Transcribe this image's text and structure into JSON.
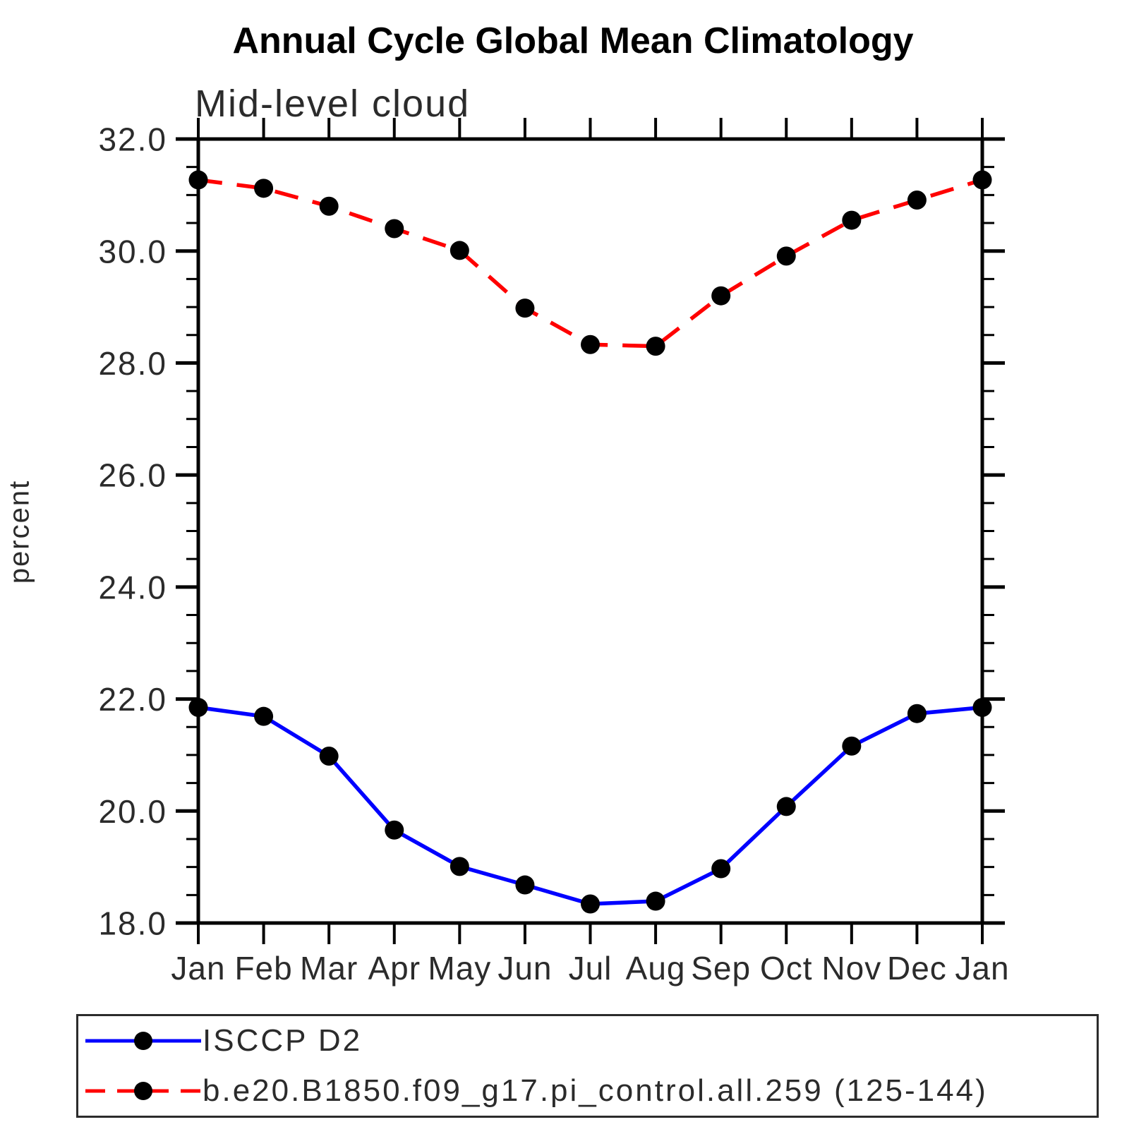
{
  "chart": {
    "title": "Annual Cycle Global Mean Climatology",
    "subtitle": "Mid-level cloud",
    "ylabel": "percent"
  },
  "chart_data": {
    "type": "line",
    "title": "Annual Cycle Global Mean Climatology",
    "subtitle": "Mid-level cloud",
    "xlabel": "",
    "ylabel": "percent",
    "categories": [
      "Jan",
      "Feb",
      "Mar",
      "Apr",
      "May",
      "Jun",
      "Jul",
      "Aug",
      "Sep",
      "Oct",
      "Nov",
      "Dec",
      "Jan"
    ],
    "ylim": [
      18.0,
      32.0
    ],
    "ytick_major_interval": 2.0,
    "ytick_minor_interval": 0.5,
    "ytick_labels": [
      "18.0",
      "20.0",
      "22.0",
      "24.0",
      "26.0",
      "28.0",
      "30.0",
      "32.0"
    ],
    "grid": false,
    "legend_position": "bottom",
    "series": [
      {
        "name": "ISCCP D2",
        "color": "#0000ff",
        "line_style": "solid",
        "marker": "filled-circle",
        "marker_color": "#000000",
        "values": [
          21.85,
          21.69,
          20.98,
          19.66,
          19.01,
          18.68,
          18.34,
          18.39,
          18.97,
          20.08,
          21.16,
          21.74,
          21.85
        ]
      },
      {
        "name": "b.e20.B1850.f09_g17.pi_control.all.259 (125-144)",
        "color": "#ff0000",
        "line_style": "dashed",
        "marker": "filled-circle",
        "marker_color": "#000000",
        "values": [
          31.27,
          31.12,
          30.8,
          30.4,
          30.01,
          28.98,
          28.33,
          28.3,
          29.2,
          29.91,
          30.55,
          30.91,
          31.27
        ]
      }
    ],
    "colors": {
      "axis": "#000000",
      "tick_label_text": "#2b2b2b",
      "background": "#ffffff"
    }
  }
}
